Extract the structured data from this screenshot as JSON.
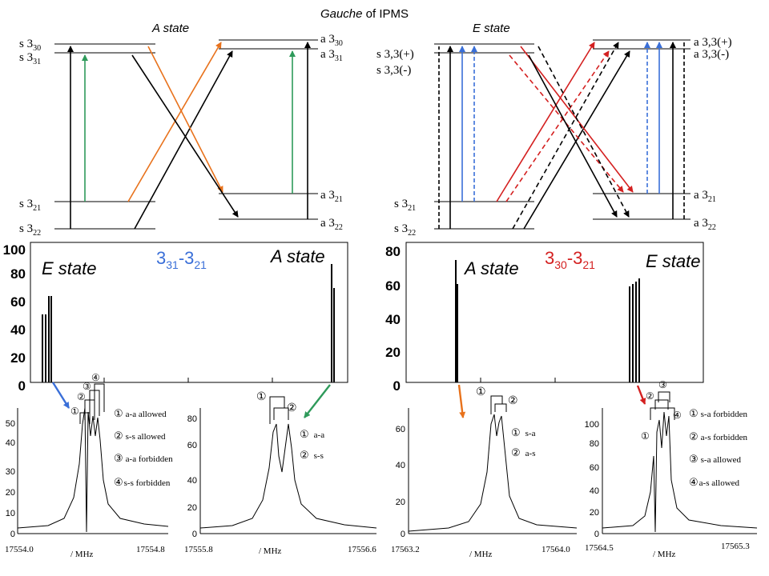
{
  "header": {
    "title_italic": "Gauche",
    "title_rest": " of IPMS",
    "a_state": "A state",
    "e_state": "E state"
  },
  "levels_a": {
    "s330": "s 3",
    "s330_sub": "30",
    "s331": "s 3",
    "s331_sub": "31",
    "s321": "s 3",
    "s321_sub": "21",
    "s322": "s 3",
    "s322_sub": "22",
    "a330": "a 3",
    "a330_sub": "30",
    "a331": "a 3",
    "a331_sub": "31",
    "a321": "a 3",
    "a321_sub": "21",
    "a322": "a 3",
    "a322_sub": "22"
  },
  "levels_e": {
    "s33p": "s 3,3(+)",
    "s33m": "s 3,3(-)",
    "s321": "s 3",
    "s321_sub": "21",
    "s322": "s 3",
    "s322_sub": "22",
    "a33p": "a 3,3(+)",
    "a33m": "a 3,3(-)",
    "a321": "a 3",
    "a321_sub": "21",
    "a322": "a 3",
    "a322_sub": "22"
  },
  "spectrum_left": {
    "label_e": "E state",
    "label_a": "A state",
    "trans_main": "3",
    "trans_sub1": "31",
    "trans_dash": "-3",
    "trans_sub2": "21",
    "yticks": [
      "0",
      "20",
      "40",
      "60",
      "80",
      "100"
    ]
  },
  "spectrum_right": {
    "label_a": "A state",
    "label_e": "E state",
    "trans_main": "3",
    "trans_sub1": "30",
    "trans_dash": "-3",
    "trans_sub2": "21",
    "yticks": [
      "0",
      "20",
      "40",
      "60",
      "80"
    ]
  },
  "zoom1": {
    "yticks": [
      "0",
      "10",
      "20",
      "30",
      "40",
      "50"
    ],
    "x_left": "17554.0",
    "x_right": "17554.8",
    "unit": "/ MHz",
    "markers": [
      "①",
      "②",
      "③",
      "④"
    ],
    "legend": [
      {
        "num": "①",
        "text": "a-a allowed"
      },
      {
        "num": "②",
        "text": "s-s allowed"
      },
      {
        "num": "③",
        "text": "a-a forbidden"
      },
      {
        "num": "④",
        "text": "s-s forbidden"
      }
    ]
  },
  "zoom2": {
    "yticks": [
      "0",
      "20",
      "40",
      "60",
      "80"
    ],
    "x_left": "17555.8",
    "x_right": "17556.6",
    "unit": "/ MHz",
    "markers": [
      "①",
      "②"
    ],
    "legend": [
      {
        "num": "①",
        "text": "a-a"
      },
      {
        "num": "②",
        "text": "s-s"
      }
    ]
  },
  "zoom3": {
    "yticks": [
      "0",
      "20",
      "40",
      "60"
    ],
    "x_left": "17563.2",
    "x_right": "17564.0",
    "unit": "/ MHz",
    "markers": [
      "①",
      "②"
    ],
    "legend": [
      {
        "num": "①",
        "text": "s-a"
      },
      {
        "num": "②",
        "text": "a-s"
      }
    ]
  },
  "zoom4": {
    "yticks": [
      "0",
      "20",
      "40",
      "60",
      "80",
      "100"
    ],
    "x_left": "17564.5",
    "x_right": "17565.3",
    "unit": "/ MHz",
    "markers": [
      "①",
      "②",
      "③",
      "④"
    ],
    "legend": [
      {
        "num": "①",
        "text": "s-a forbidden"
      },
      {
        "num": "②",
        "text": "a-s forbidden"
      },
      {
        "num": "③",
        "text": "s-a allowed"
      },
      {
        "num": "④",
        "text": "a-s allowed"
      }
    ]
  },
  "colors": {
    "orange": "#e8721c",
    "green": "#2e9a5a",
    "blue": "#3a6fd8",
    "red": "#d42020",
    "black": "#000000"
  }
}
